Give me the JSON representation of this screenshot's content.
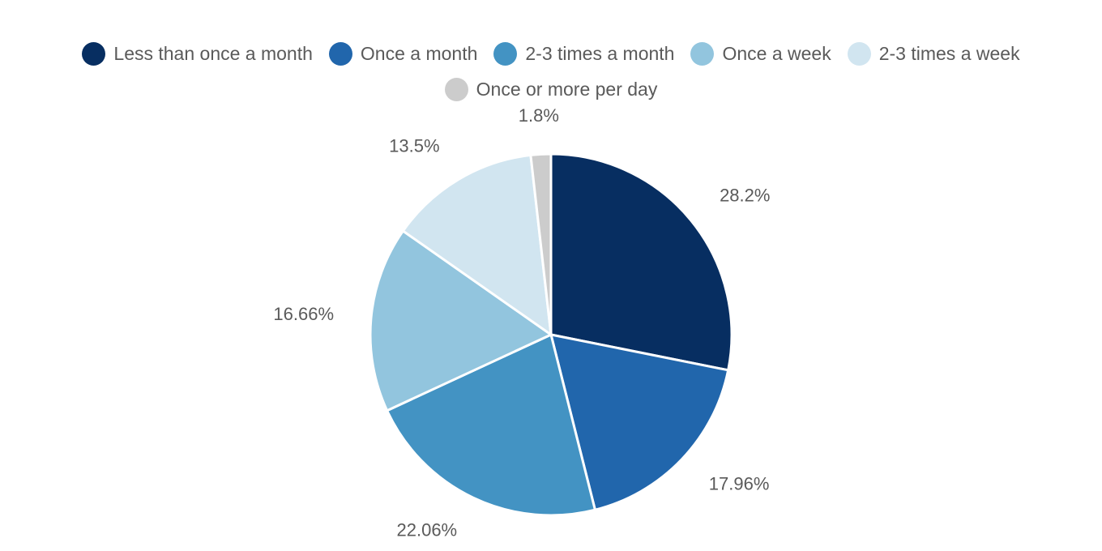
{
  "chart_data": {
    "type": "pie",
    "title": "",
    "categories": [
      "Less than once a month",
      "Once a month",
      "2-3 times a month",
      "Once a week",
      "2-3 times a week",
      "Once or more per day"
    ],
    "values": [
      28.2,
      17.96,
      22.06,
      16.66,
      13.5,
      1.8
    ],
    "labels": [
      "28.2%",
      "17.96%",
      "22.06%",
      "16.66%",
      "13.5%",
      "1.8%"
    ],
    "colors": [
      "#072e61",
      "#2166ac",
      "#4393c3",
      "#92c5de",
      "#d1e5f0",
      "#cccccc"
    ],
    "legend_position": "top",
    "start_direction": "clockwise from 12 o'clock"
  }
}
